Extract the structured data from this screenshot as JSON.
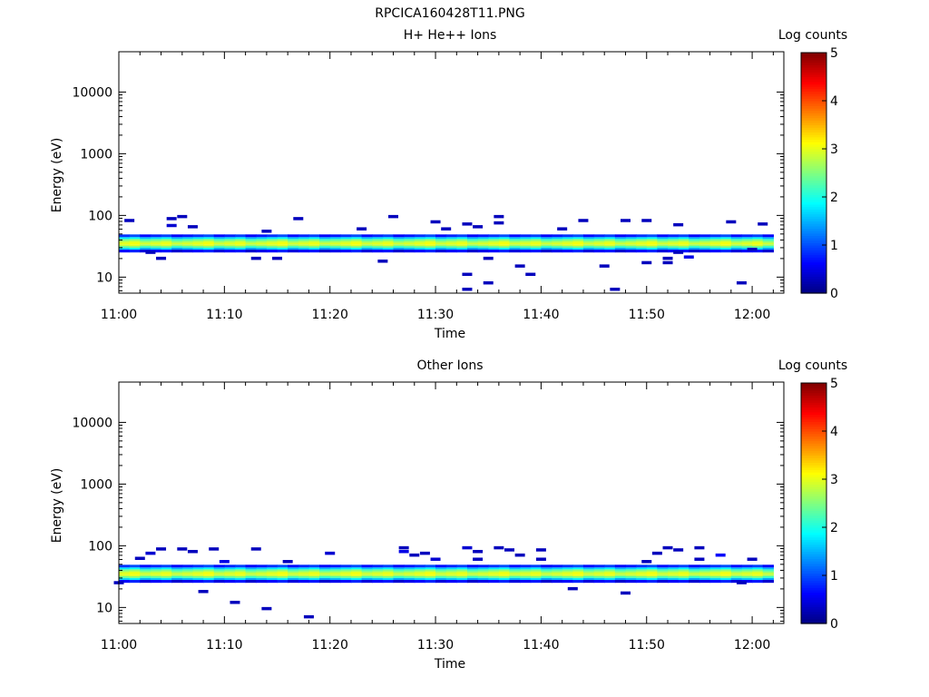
{
  "figure": {
    "title": "RPCICA160428T11.PNG"
  },
  "chart_data": [
    {
      "type": "heatmap",
      "title": "H+ He++ Ions",
      "xlabel": "Time",
      "ylabel": "Energy (eV)",
      "x_ticks": [
        "11:00",
        "11:10",
        "11:20",
        "11:30",
        "11:40",
        "11:50",
        "12:00"
      ],
      "x_range": [
        "11:00",
        "12:03"
      ],
      "y_scale": "log",
      "y_ticks": [
        "10",
        "100",
        "1000",
        "10000"
      ],
      "ylim": [
        5.5,
        45000
      ],
      "colorbar": {
        "label": "Log counts",
        "ticks": [
          "0",
          "1",
          "2",
          "3",
          "4",
          "5"
        ],
        "range": [
          0,
          5
        ]
      },
      "band": {
        "time_start": "11:00",
        "time_end": "12:02",
        "energy_levels_eV": [
          27,
          29,
          31,
          33,
          35,
          37,
          40,
          43,
          46
        ],
        "log_counts_profile": [
          0.6,
          1.6,
          2.3,
          2.8,
          3.0,
          2.8,
          2.4,
          1.7,
          0.8
        ]
      },
      "sparse_points": [
        {
          "t": "11:01",
          "e": 82,
          "v": 0.3
        },
        {
          "t": "11:03",
          "e": 25,
          "v": 0.3
        },
        {
          "t": "11:04",
          "e": 20,
          "v": 0.3
        },
        {
          "t": "11:05",
          "e": 88,
          "v": 0.3
        },
        {
          "t": "11:05",
          "e": 68,
          "v": 0.4
        },
        {
          "t": "11:06",
          "e": 95,
          "v": 0.3
        },
        {
          "t": "11:07",
          "e": 65,
          "v": 0.3
        },
        {
          "t": "11:13",
          "e": 20,
          "v": 0.3
        },
        {
          "t": "11:14",
          "e": 55,
          "v": 0.3
        },
        {
          "t": "11:15",
          "e": 20,
          "v": 0.3
        },
        {
          "t": "11:17",
          "e": 88,
          "v": 0.3
        },
        {
          "t": "11:23",
          "e": 60,
          "v": 0.3
        },
        {
          "t": "11:25",
          "e": 18,
          "v": 0.3
        },
        {
          "t": "11:26",
          "e": 95,
          "v": 0.3
        },
        {
          "t": "11:30",
          "e": 78,
          "v": 0.3
        },
        {
          "t": "11:31",
          "e": 60,
          "v": 0.3
        },
        {
          "t": "11:33",
          "e": 72,
          "v": 0.3
        },
        {
          "t": "11:33",
          "e": 11,
          "v": 0.3
        },
        {
          "t": "11:33",
          "e": 6.3,
          "v": 0.3
        },
        {
          "t": "11:34",
          "e": 65,
          "v": 0.3
        },
        {
          "t": "11:35",
          "e": 20,
          "v": 0.3
        },
        {
          "t": "11:35",
          "e": 8,
          "v": 0.3
        },
        {
          "t": "11:36",
          "e": 95,
          "v": 0.3
        },
        {
          "t": "11:36",
          "e": 75,
          "v": 0.3
        },
        {
          "t": "11:38",
          "e": 15,
          "v": 0.3
        },
        {
          "t": "11:39",
          "e": 11,
          "v": 0.3
        },
        {
          "t": "11:42",
          "e": 60,
          "v": 0.3
        },
        {
          "t": "11:44",
          "e": 82,
          "v": 0.3
        },
        {
          "t": "11:46",
          "e": 15,
          "v": 0.3
        },
        {
          "t": "11:47",
          "e": 6.3,
          "v": 0.3
        },
        {
          "t": "11:48",
          "e": 82,
          "v": 0.3
        },
        {
          "t": "11:50",
          "e": 17,
          "v": 0.3
        },
        {
          "t": "11:50",
          "e": 82,
          "v": 0.3
        },
        {
          "t": "11:52",
          "e": 20,
          "v": 0.3
        },
        {
          "t": "11:52",
          "e": 17,
          "v": 0.3
        },
        {
          "t": "11:53",
          "e": 70,
          "v": 0.3
        },
        {
          "t": "11:53",
          "e": 25,
          "v": 0.3
        },
        {
          "t": "11:54",
          "e": 21,
          "v": 0.5
        },
        {
          "t": "11:58",
          "e": 78,
          "v": 0.3
        },
        {
          "t": "11:59",
          "e": 8,
          "v": 0.3
        },
        {
          "t": "12:01",
          "e": 72,
          "v": 0.3
        },
        {
          "t": "12:00",
          "e": 28,
          "v": 0.3
        }
      ]
    },
    {
      "type": "heatmap",
      "title": "Other Ions",
      "xlabel": "Time",
      "ylabel": "Energy (eV)",
      "x_ticks": [
        "11:00",
        "11:10",
        "11:20",
        "11:30",
        "11:40",
        "11:50",
        "12:00"
      ],
      "x_range": [
        "11:00",
        "12:03"
      ],
      "y_scale": "log",
      "y_ticks": [
        "10",
        "100",
        "1000",
        "10000"
      ],
      "ylim": [
        5.5,
        45000
      ],
      "colorbar": {
        "label": "Log counts",
        "ticks": [
          "0",
          "1",
          "2",
          "3",
          "4",
          "5"
        ],
        "range": [
          0,
          5
        ]
      },
      "band": {
        "time_start": "11:00",
        "time_end": "12:02",
        "energy_levels_eV": [
          27,
          29,
          31,
          33,
          35,
          37,
          40,
          43,
          46
        ],
        "log_counts_profile": [
          0.6,
          1.6,
          2.3,
          2.8,
          3.0,
          2.8,
          2.4,
          1.7,
          0.8
        ]
      },
      "sparse_points": [
        {
          "t": "11:00",
          "e": 25,
          "v": 0.3
        },
        {
          "t": "11:02",
          "e": 62,
          "v": 0.3
        },
        {
          "t": "11:03",
          "e": 75,
          "v": 0.4
        },
        {
          "t": "11:04",
          "e": 88,
          "v": 0.3
        },
        {
          "t": "11:06",
          "e": 88,
          "v": 0.3
        },
        {
          "t": "11:07",
          "e": 80,
          "v": 0.3
        },
        {
          "t": "11:08",
          "e": 18,
          "v": 0.3
        },
        {
          "t": "11:09",
          "e": 88,
          "v": 0.3
        },
        {
          "t": "11:10",
          "e": 55,
          "v": 0.5
        },
        {
          "t": "11:11",
          "e": 12,
          "v": 0.3
        },
        {
          "t": "11:13",
          "e": 88,
          "v": 0.3
        },
        {
          "t": "11:14",
          "e": 9.5,
          "v": 0.3
        },
        {
          "t": "11:16",
          "e": 55,
          "v": 0.3
        },
        {
          "t": "11:18",
          "e": 7,
          "v": 0.3
        },
        {
          "t": "11:20",
          "e": 75,
          "v": 0.4
        },
        {
          "t": "11:27",
          "e": 80,
          "v": 0.5
        },
        {
          "t": "11:27",
          "e": 92,
          "v": 0.3
        },
        {
          "t": "11:28",
          "e": 70,
          "v": 0.3
        },
        {
          "t": "11:29",
          "e": 75,
          "v": 0.3
        },
        {
          "t": "11:30",
          "e": 60,
          "v": 0.4
        },
        {
          "t": "11:33",
          "e": 92,
          "v": 0.4
        },
        {
          "t": "11:34",
          "e": 80,
          "v": 0.3
        },
        {
          "t": "11:34",
          "e": 60,
          "v": 0.3
        },
        {
          "t": "11:36",
          "e": 92,
          "v": 0.3
        },
        {
          "t": "11:37",
          "e": 85,
          "v": 0.3
        },
        {
          "t": "11:38",
          "e": 70,
          "v": 0.3
        },
        {
          "t": "11:40",
          "e": 85,
          "v": 0.3
        },
        {
          "t": "11:40",
          "e": 60,
          "v": 0.3
        },
        {
          "t": "11:43",
          "e": 20,
          "v": 0.3
        },
        {
          "t": "11:48",
          "e": 17,
          "v": 0.3
        },
        {
          "t": "11:50",
          "e": 55,
          "v": 0.3
        },
        {
          "t": "11:51",
          "e": 75,
          "v": 0.3
        },
        {
          "t": "11:52",
          "e": 92,
          "v": 0.3
        },
        {
          "t": "11:53",
          "e": 85,
          "v": 0.3
        },
        {
          "t": "11:55",
          "e": 92,
          "v": 0.3
        },
        {
          "t": "11:55",
          "e": 60,
          "v": 0.3
        },
        {
          "t": "11:57",
          "e": 70,
          "v": 0.6
        },
        {
          "t": "12:00",
          "e": 60,
          "v": 0.3
        },
        {
          "t": "11:59",
          "e": 25,
          "v": 0.3
        }
      ]
    }
  ]
}
